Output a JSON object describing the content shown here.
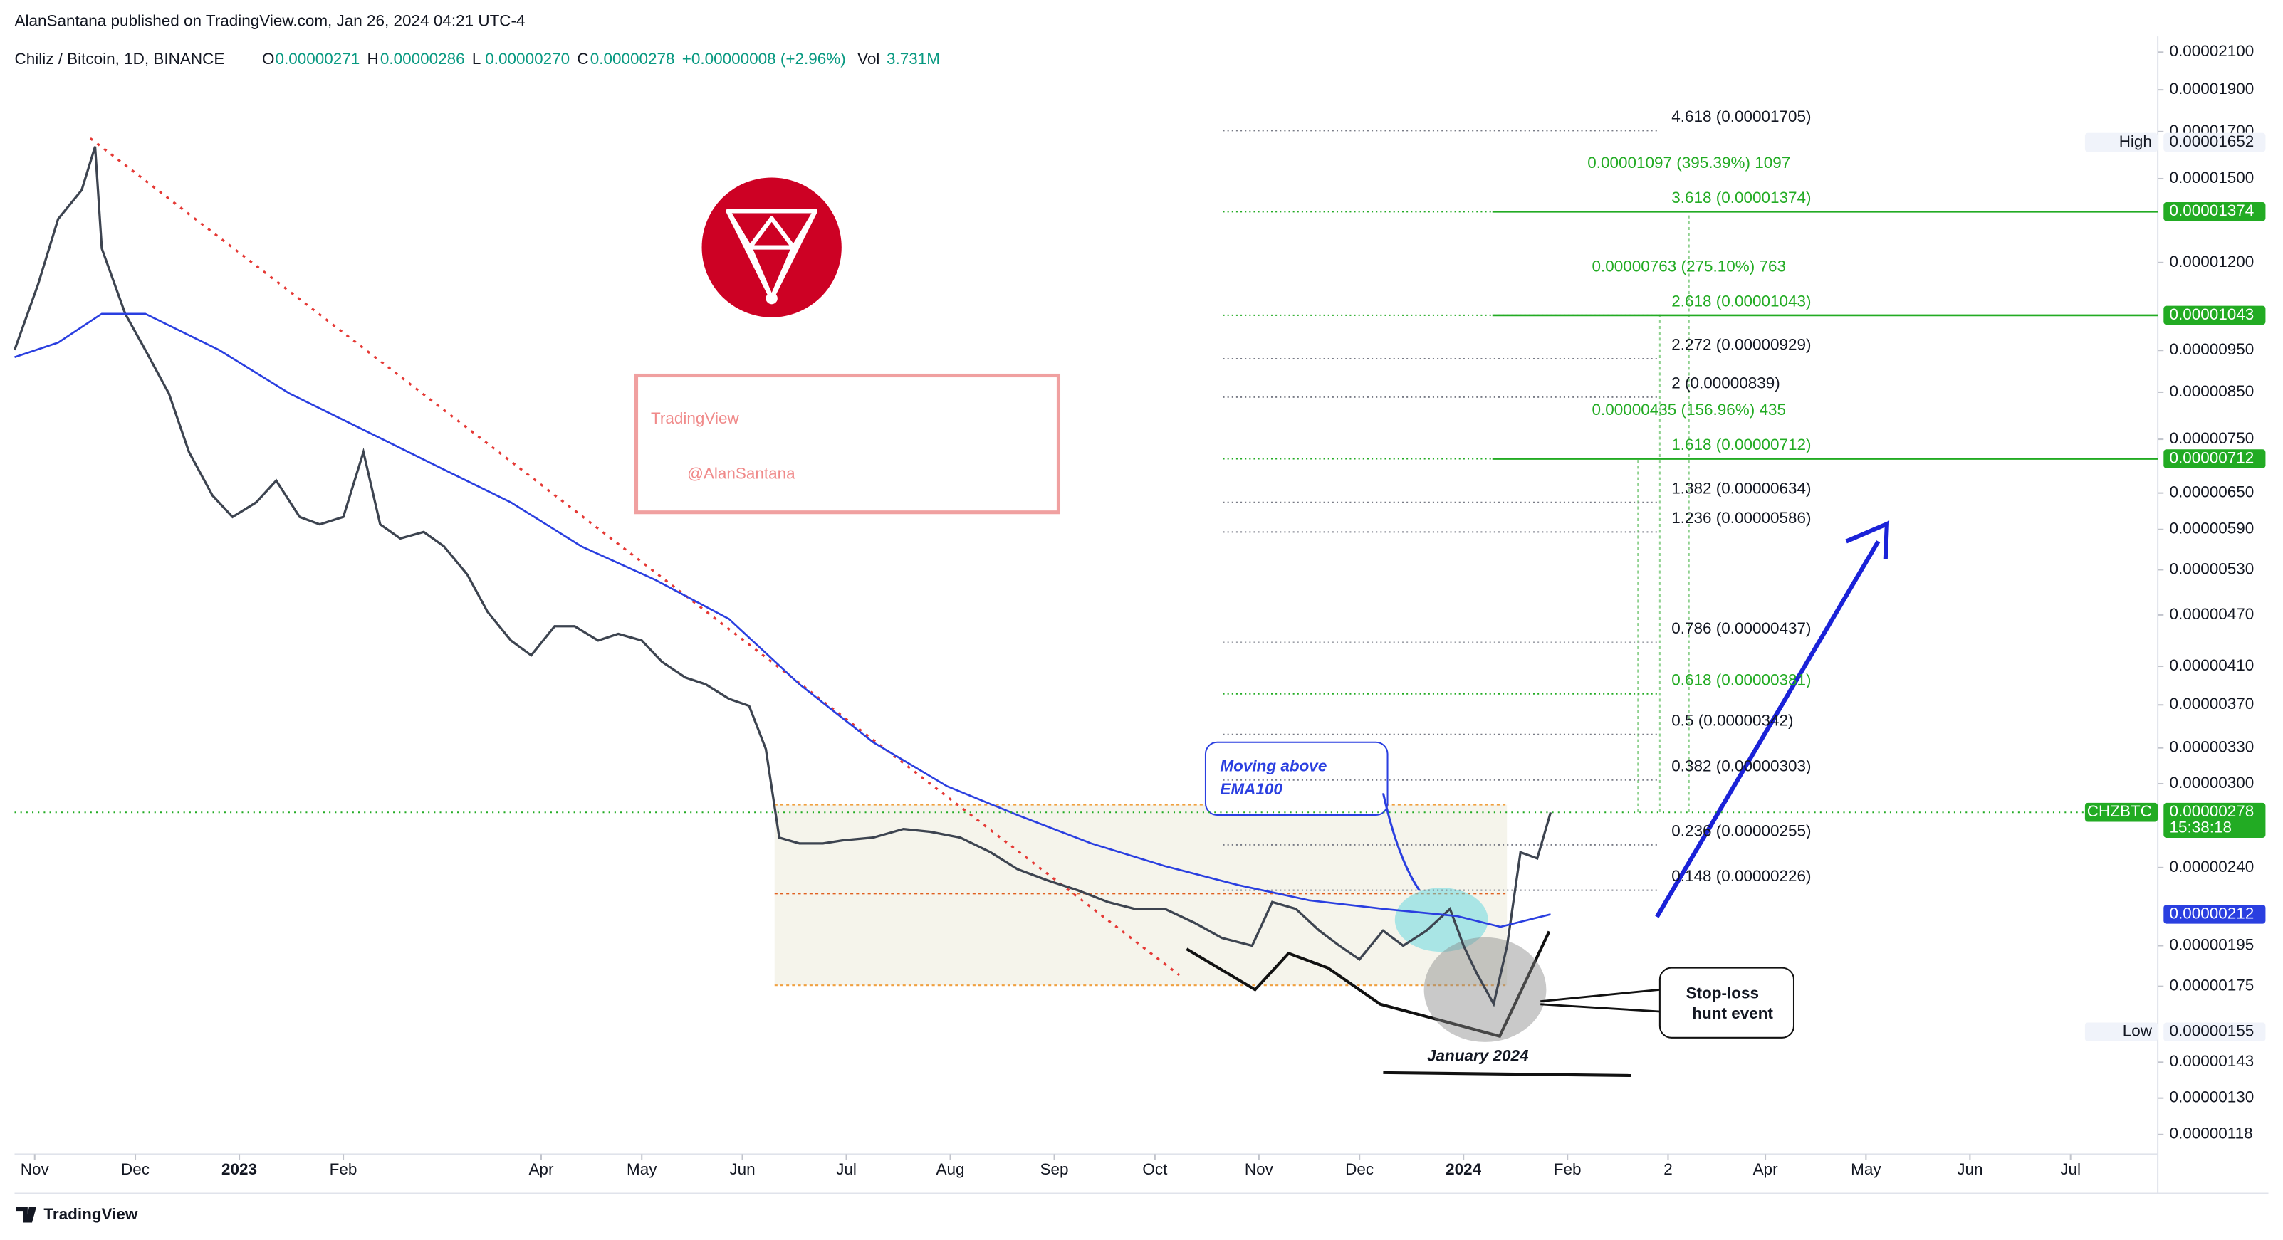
{
  "header": {
    "publisher": "AlanSantana published on TradingView.com, Jan 26, 2024 04:21 UTC-4",
    "footer_brand": "TradingView"
  },
  "chart_data": {
    "type": "line",
    "title": "Chiliz / Bitcoin, 1D, BINANCE",
    "ohlc": [
      {
        "label": "O",
        "value": "0.00000271"
      },
      {
        "label": "H",
        "value": "0.00000286"
      },
      {
        "label": "L",
        "value": "0.00000270"
      },
      {
        "label": "C",
        "value": "0.00000278"
      }
    ],
    "change": "+0.00000008 (+2.96%)",
    "volume": {
      "label": "Vol",
      "value": "3.731M"
    },
    "log_scale": true,
    "xlim": [
      0,
      639
    ],
    "xticks": [
      {
        "value": 6,
        "label": "Nov"
      },
      {
        "value": 36,
        "label": "Dec"
      },
      {
        "value": 67,
        "label": "2023"
      },
      {
        "value": 98,
        "label": "Feb"
      },
      {
        "value": 157,
        "label": "Apr"
      },
      {
        "value": 187,
        "label": "May"
      },
      {
        "value": 217,
        "label": "Jun"
      },
      {
        "value": 248,
        "label": "Jul"
      },
      {
        "value": 279,
        "label": "Aug"
      },
      {
        "value": 310,
        "label": "Sep"
      },
      {
        "value": 340,
        "label": "Oct"
      },
      {
        "value": 371,
        "label": "Nov"
      },
      {
        "value": 401,
        "label": "Dec"
      },
      {
        "value": 432,
        "label": "2024"
      },
      {
        "value": 463,
        "label": "Feb"
      },
      {
        "value": 493,
        "label": "2"
      },
      {
        "value": 522,
        "label": "Apr"
      },
      {
        "value": 552,
        "label": "May"
      },
      {
        "value": 583,
        "label": "Jun"
      },
      {
        "value": 613,
        "label": "Jul"
      }
    ],
    "ylim": [
      2.19e-05,
      1.12e-06
    ],
    "yticks": [
      {
        "value": 2.1e-05,
        "label": "0.00002100"
      },
      {
        "value": 1.9e-05,
        "label": "0.00001900"
      },
      {
        "value": 1.7e-05,
        "label": "0.00001700"
      },
      {
        "value": 1.5e-05,
        "label": "0.00001500"
      },
      {
        "value": 1.2e-05,
        "label": "0.00001200"
      },
      {
        "value": 9.5e-06,
        "label": "0.00000950"
      },
      {
        "value": 8.5e-06,
        "label": "0.00000850"
      },
      {
        "value": 7.5e-06,
        "label": "0.00000750"
      },
      {
        "value": 6.5e-06,
        "label": "0.00000650"
      },
      {
        "value": 5.9e-06,
        "label": "0.00000590"
      },
      {
        "value": 5.3e-06,
        "label": "0.00000530"
      },
      {
        "value": 4.7e-06,
        "label": "0.00000470"
      },
      {
        "value": 4.1e-06,
        "label": "0.00000410"
      },
      {
        "value": 3.7e-06,
        "label": "0.00000370"
      },
      {
        "value": 3.3e-06,
        "label": "0.00000330"
      },
      {
        "value": 3e-06,
        "label": "0.00000300"
      },
      {
        "value": 2.4e-06,
        "label": "0.00000240"
      },
      {
        "value": 1.95e-06,
        "label": "0.00000195"
      },
      {
        "value": 1.75e-06,
        "label": "0.00000175"
      },
      {
        "value": 1.43e-06,
        "label": "0.00000143"
      },
      {
        "value": 1.3e-06,
        "label": "0.00000130"
      },
      {
        "value": 1.18e-06,
        "label": "0.00000118"
      }
    ],
    "series": [
      {
        "color": "#3d4450",
        "x": [
          0,
          7,
          13,
          20,
          24,
          26,
          33,
          39,
          46,
          52,
          59,
          65,
          72,
          78,
          85,
          91,
          98,
          104,
          109,
          115,
          122,
          128,
          135,
          141,
          148,
          154,
          161,
          167,
          174,
          180,
          187,
          193,
          200,
          206,
          213,
          219,
          224,
          228,
          234,
          241,
          247,
          256,
          265,
          273,
          282,
          291,
          299,
          308,
          317,
          326,
          334,
          343,
          352,
          360,
          369,
          375,
          382,
          389,
          395,
          401,
          408,
          414,
          421,
          428,
          432,
          436,
          441,
          445,
          449,
          454,
          458
        ],
        "values": [
          9.51e-06,
          1.132e-05,
          1.347e-05,
          1.455e-05,
          1.634e-05,
          1.246e-05,
          1.047e-05,
          9.51e-06,
          8.47e-06,
          7.25e-06,
          6.46e-06,
          6.1e-06,
          6.34e-06,
          6.72e-06,
          6.1e-06,
          5.98e-06,
          6.1e-06,
          7.25e-06,
          5.98e-06,
          5.76e-06,
          5.86e-06,
          5.64e-06,
          5.23e-06,
          4.74e-06,
          4.39e-06,
          4.22e-06,
          4.56e-06,
          4.56e-06,
          4.39e-06,
          4.47e-06,
          4.39e-06,
          4.15e-06,
          3.98e-06,
          3.91e-06,
          3.76e-06,
          3.69e-06,
          3.29e-06,
          2.6e-06,
          2.56e-06,
          2.56e-06,
          2.58e-06,
          2.6e-06,
          2.66e-06,
          2.64e-06,
          2.6e-06,
          2.5e-06,
          2.39e-06,
          2.32e-06,
          2.26e-06,
          2.19e-06,
          2.15e-06,
          2.15e-06,
          2.07e-06,
          1.99e-06,
          1.95e-06,
          2.19e-06,
          2.15e-06,
          2.03e-06,
          1.95e-06,
          1.88e-06,
          2.03e-06,
          1.95e-06,
          2.03e-06,
          2.15e-06,
          1.95e-06,
          1.81e-06,
          1.67e-06,
          1.95e-06,
          2.5e-06,
          2.46e-06,
          2.78e-06
        ]
      },
      {
        "color": "#2a3fe0",
        "x": [
          0,
          13,
          26,
          39,
          61,
          82,
          104,
          126,
          148,
          169,
          191,
          213,
          234,
          256,
          278,
          299,
          321,
          343,
          365,
          386,
          408,
          430,
          443,
          458
        ],
        "values": [
          9.33e-06,
          9.7e-06,
          1.047e-05,
          1.047e-05,
          9.51e-06,
          8.47e-06,
          7.69e-06,
          6.98e-06,
          6.34e-06,
          5.64e-06,
          5.16e-06,
          4.65e-06,
          3.91e-06,
          3.35e-06,
          2.98e-06,
          2.76e-06,
          2.56e-06,
          2.41e-06,
          2.29e-06,
          2.2e-06,
          2.15e-06,
          2.11e-06,
          2.05e-06,
          2.12e-06
        ]
      }
    ],
    "fib_levels": [
      {
        "value": 1.705e-05,
        "label": "4.618 (0.00001705)",
        "color": "#787b86"
      },
      {
        "value": 1.374e-05,
        "label": "3.618 (0.00001374)",
        "color": "#22ab23"
      },
      {
        "value": 1.043e-05,
        "label": "2.618 (0.00001043)",
        "color": "#22ab23"
      },
      {
        "value": 9.29e-06,
        "label": "2.272 (0.00000929)",
        "color": "#787b86"
      },
      {
        "value": 8.39e-06,
        "label": "2 (0.00000839)",
        "color": "#787b86"
      },
      {
        "value": 7.12e-06,
        "label": "1.618 (0.00000712)",
        "color": "#22ab23"
      },
      {
        "value": 6.34e-06,
        "label": "1.382 (0.00000634)",
        "color": "#787b86"
      },
      {
        "value": 5.86e-06,
        "label": "1.236 (0.00000586)",
        "color": "#787b86"
      },
      {
        "value": 4.37e-06,
        "label": "0.786 (0.00000437)",
        "color": "#a0a3ab"
      },
      {
        "value": 3.81e-06,
        "label": "0.618 (0.00000381)",
        "color": "#22ab23"
      },
      {
        "value": 3.42e-06,
        "label": "0.5 (0.00000342)",
        "color": "#787b86"
      },
      {
        "value": 3.03e-06,
        "label": "0.382 (0.00000303)",
        "color": "#787b86"
      },
      {
        "value": 2.55e-06,
        "label": "0.236 (0.00000255)",
        "color": "#787b86"
      },
      {
        "value": 2.26e-06,
        "label": "0.148 (0.00000226)",
        "color": "#787b86"
      }
    ],
    "targets": [
      {
        "value": 1.374e-05,
        "label": "0.00001097 (395.39%) 1097",
        "color": "#22ab23"
      },
      {
        "value": 1.043e-05,
        "label": "0.00000763 (275.10%) 763",
        "color": "#22ab23"
      },
      {
        "value": 7.12e-06,
        "label": "0.00000435 (156.96%) 435",
        "color": "#22ab23"
      }
    ],
    "price_tags": [
      {
        "value": 1.652e-05,
        "label": "0.00001652",
        "tag": "High"
      },
      {
        "value": 1.374e-05,
        "label": "0.00001374",
        "color": "#22ab23"
      },
      {
        "value": 1.043e-05,
        "label": "0.00001043",
        "color": "#22ab23"
      },
      {
        "value": 7.12e-06,
        "label": "0.00000712",
        "color": "#22ab23"
      },
      {
        "value": 2.78e-06,
        "label": "0.00000278",
        "tag": "CHZBTC",
        "timer": "15:38:18",
        "color": "#22ab23"
      },
      {
        "value": 2.12e-06,
        "label": "0.00000212",
        "color": "#2a3fe0"
      },
      {
        "value": 1.55e-06,
        "label": "0.00000155",
        "tag": "Low"
      }
    ],
    "annotations": {
      "watermark": [
        "TradingView",
        "@AlanSantana"
      ],
      "ema_note": [
        "Moving above",
        "EMA100"
      ],
      "stop_loss": [
        "Stop-loss",
        "hunt event"
      ],
      "period": "January 2024"
    }
  }
}
